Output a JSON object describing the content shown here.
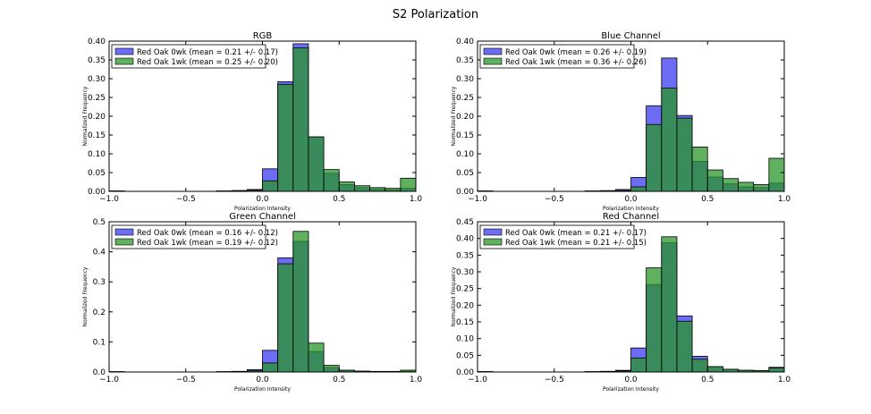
{
  "figure": {
    "title": "S2 Polarization"
  },
  "colors": {
    "series_a": "#3b3bf0",
    "series_b": "#2a962a",
    "overlap": "#286f6a"
  },
  "chart_data": [
    {
      "type": "bar",
      "title": "RGB",
      "xlabel": "Polarization Intensity",
      "ylabel": "Normalized Frequency",
      "xlim": [
        -1.0,
        1.0
      ],
      "ylim": [
        0,
        0.4
      ],
      "xticks": [
        "-1.0",
        "-0.5",
        "0.0",
        "0.5",
        "1.0"
      ],
      "yticks": [
        "0.00",
        "0.05",
        "0.10",
        "0.15",
        "0.20",
        "0.25",
        "0.30",
        "0.35",
        "0.40"
      ],
      "legend_position": "top-left",
      "bin_edges": [
        -1.0,
        -0.9,
        -0.8,
        -0.7,
        -0.6,
        -0.5,
        -0.4,
        -0.3,
        -0.2,
        -0.1,
        0.0,
        0.1,
        0.2,
        0.3,
        0.4,
        0.5,
        0.6,
        0.7,
        0.8,
        0.9,
        1.0
      ],
      "series": [
        {
          "name": "Red Oak 0wk (mean = 0.21 +/- 0.17)",
          "values": [
            0.001,
            0,
            0,
            0,
            0,
            0,
            0,
            0.001,
            0.002,
            0.005,
            0.06,
            0.292,
            0.393,
            0.145,
            0.048,
            0.018,
            0.01,
            0.006,
            0.004,
            0.008
          ]
        },
        {
          "name": "Red Oak 1wk (mean = 0.25 +/- 0.20)",
          "values": [
            0.001,
            0,
            0,
            0,
            0,
            0,
            0,
            0.001,
            0.002,
            0.003,
            0.028,
            0.285,
            0.382,
            0.145,
            0.058,
            0.025,
            0.015,
            0.01,
            0.008,
            0.035
          ]
        }
      ]
    },
    {
      "type": "bar",
      "title": "Blue Channel",
      "xlabel": "Polarization Intensity",
      "ylabel": "Normalized Frequency",
      "xlim": [
        -1.0,
        1.0
      ],
      "ylim": [
        0,
        0.4
      ],
      "xticks": [
        "-1.0",
        "-0.5",
        "0.0",
        "0.5",
        "1.0"
      ],
      "yticks": [
        "0.00",
        "0.05",
        "0.10",
        "0.15",
        "0.20",
        "0.25",
        "0.30",
        "0.35",
        "0.40"
      ],
      "legend_position": "top-left",
      "bin_edges": [
        -1.0,
        -0.9,
        -0.8,
        -0.7,
        -0.6,
        -0.5,
        -0.4,
        -0.3,
        -0.2,
        -0.1,
        0.0,
        0.1,
        0.2,
        0.3,
        0.4,
        0.5,
        0.6,
        0.7,
        0.8,
        0.9,
        1.0
      ],
      "series": [
        {
          "name": "Red Oak 0wk (mean = 0.26 +/- 0.19)",
          "values": [
            0.001,
            0,
            0,
            0,
            0,
            0,
            0,
            0.001,
            0.002,
            0.005,
            0.037,
            0.228,
            0.355,
            0.202,
            0.08,
            0.038,
            0.02,
            0.012,
            0.01,
            0.022
          ]
        },
        {
          "name": "Red Oak 1wk (mean = 0.36 +/- 0.26)",
          "values": [
            0.001,
            0,
            0,
            0,
            0,
            0,
            0,
            0.001,
            0.001,
            0.002,
            0.012,
            0.178,
            0.275,
            0.195,
            0.118,
            0.057,
            0.034,
            0.024,
            0.018,
            0.088
          ]
        }
      ]
    },
    {
      "type": "bar",
      "title": "Green Channel",
      "xlabel": "Polarization Intensity",
      "ylabel": "Normalized Frequency",
      "xlim": [
        -1.0,
        1.0
      ],
      "ylim": [
        0,
        0.5
      ],
      "xticks": [
        "-1.0",
        "-0.5",
        "0.0",
        "0.5",
        "1.0"
      ],
      "yticks": [
        "0.0",
        "0.1",
        "0.2",
        "0.3",
        "0.4",
        "0.5"
      ],
      "legend_position": "top-left",
      "bin_edges": [
        -1.0,
        -0.9,
        -0.8,
        -0.7,
        -0.6,
        -0.5,
        -0.4,
        -0.3,
        -0.2,
        -0.1,
        0.0,
        0.1,
        0.2,
        0.3,
        0.4,
        0.5,
        0.6,
        0.7,
        0.8,
        0.9,
        1.0
      ],
      "series": [
        {
          "name": "Red Oak 0wk (mean = 0.16 +/- 0.12)",
          "values": [
            0.001,
            0,
            0,
            0,
            0,
            0,
            0,
            0.001,
            0.002,
            0.008,
            0.072,
            0.38,
            0.435,
            0.068,
            0.015,
            0.005,
            0.002,
            0.001,
            0.001,
            0.002
          ]
        },
        {
          "name": "Red Oak 1wk (mean = 0.19 +/- 0.12)",
          "values": [
            0.001,
            0,
            0,
            0,
            0,
            0,
            0,
            0.001,
            0.002,
            0.004,
            0.03,
            0.36,
            0.468,
            0.096,
            0.022,
            0.006,
            0.003,
            0.002,
            0.002,
            0.006
          ]
        }
      ]
    },
    {
      "type": "bar",
      "title": "Red Channel",
      "xlabel": "Polarization Intensity",
      "ylabel": "Normalized Frequency",
      "xlim": [
        -1.0,
        1.0
      ],
      "ylim": [
        0,
        0.45
      ],
      "xticks": [
        "-1.0",
        "-0.5",
        "0.0",
        "0.5",
        "1.0"
      ],
      "yticks": [
        "0.00",
        "0.05",
        "0.10",
        "0.15",
        "0.20",
        "0.25",
        "0.30",
        "0.35",
        "0.40",
        "0.45"
      ],
      "legend_position": "top-left",
      "bin_edges": [
        -1.0,
        -0.9,
        -0.8,
        -0.7,
        -0.6,
        -0.5,
        -0.4,
        -0.3,
        -0.2,
        -0.1,
        0.0,
        0.1,
        0.2,
        0.3,
        0.4,
        0.5,
        0.6,
        0.7,
        0.8,
        0.9,
        1.0
      ],
      "series": [
        {
          "name": "Red Oak 0wk (mean = 0.21 +/- 0.17)",
          "values": [
            0.001,
            0,
            0,
            0,
            0,
            0,
            0,
            0.001,
            0.002,
            0.005,
            0.072,
            0.262,
            0.387,
            0.168,
            0.047,
            0.016,
            0.008,
            0.005,
            0.004,
            0.014
          ]
        },
        {
          "name": "Red Oak 1wk (mean = 0.21 +/- 0.15)",
          "values": [
            0.001,
            0,
            0,
            0,
            0,
            0,
            0,
            0.001,
            0.001,
            0.003,
            0.042,
            0.312,
            0.405,
            0.152,
            0.038,
            0.016,
            0.008,
            0.005,
            0.004,
            0.012
          ]
        }
      ]
    }
  ]
}
